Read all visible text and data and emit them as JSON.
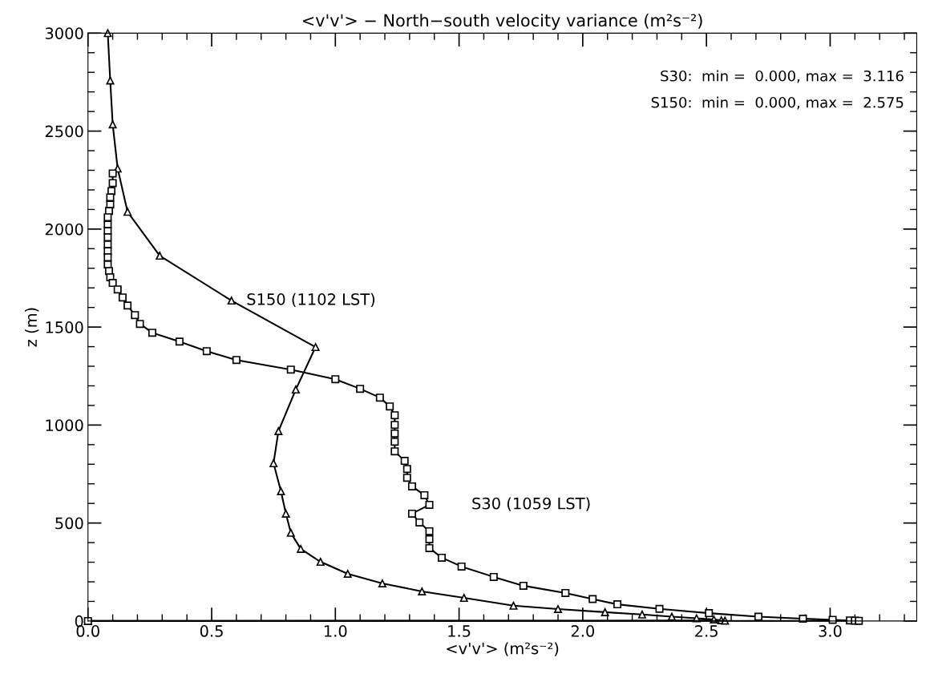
{
  "chart_data": {
    "type": "line",
    "title": "<v'v'> − North−south velocity variance (m²s⁻²)",
    "xlabel": "<v'v'> (m²s⁻²)",
    "ylabel": "z (m)",
    "annotations": [
      "S30:  min =  0.000, max =  3.116",
      "S150:  min =  0.000, max =  2.575"
    ],
    "xlim": [
      0,
      3.35
    ],
    "ylim": [
      0,
      3000
    ],
    "xticks": [
      {
        "value": 0,
        "label": "0.0"
      },
      {
        "value": 0.5,
        "label": "0.5"
      },
      {
        "value": 1,
        "label": "1.0"
      },
      {
        "value": 1.5,
        "label": "1.5"
      },
      {
        "value": 2,
        "label": "2.0"
      },
      {
        "value": 2.5,
        "label": "2.5"
      },
      {
        "value": 3,
        "label": "3.0"
      }
    ],
    "yticks": [
      0,
      500,
      1000,
      1500,
      2000,
      2500,
      3000
    ],
    "grid": false,
    "legend": false,
    "line_style": "solid",
    "series": [
      {
        "name": "S150 (1102 LST)",
        "color": "#000000",
        "marker": "triangle",
        "x": [
          0.08,
          0.09,
          0.1,
          0.12,
          0.16,
          0.29,
          0.58,
          0.92,
          0.84,
          0.77,
          0.75,
          0.78,
          0.8,
          0.82,
          0.86,
          0.94,
          1.05,
          1.19,
          1.35,
          1.52,
          1.72,
          1.9,
          2.09,
          2.24,
          2.36,
          2.46,
          2.53,
          2.56,
          2.575,
          0
        ],
        "values": [
          3000,
          2758,
          2534,
          2309,
          2088,
          1864,
          1635,
          1398,
          1181,
          969,
          805,
          662,
          548,
          450,
          368,
          302,
          241,
          192,
          151,
          118,
          78,
          61,
          45,
          33,
          22,
          14,
          8,
          4,
          2,
          0
        ]
      },
      {
        "name": "S30 (1059 LST)",
        "color": "#000000",
        "marker": "square",
        "x": [
          0.1,
          0.1,
          0.095,
          0.09,
          0.09,
          0.085,
          0.08,
          0.08,
          0.08,
          0.08,
          0.08,
          0.08,
          0.08,
          0.08,
          0.085,
          0.09,
          0.1,
          0.12,
          0.14,
          0.16,
          0.19,
          0.21,
          0.26,
          0.37,
          0.48,
          0.6,
          0.82,
          1.0,
          1.1,
          1.18,
          1.22,
          1.24,
          1.24,
          1.24,
          1.24,
          1.24,
          1.28,
          1.29,
          1.29,
          1.31,
          1.36,
          1.38,
          1.31,
          1.34,
          1.38,
          1.38,
          1.38,
          1.43,
          1.51,
          1.64,
          1.76,
          1.93,
          2.04,
          2.14,
          2.31,
          2.51,
          2.71,
          2.89,
          3.01,
          3.08,
          3.1,
          3.116,
          0
        ],
        "values": [
          2284,
          2235,
          2194,
          2162,
          2125,
          2092,
          2060,
          2023,
          1990,
          1958,
          1921,
          1888,
          1856,
          1819,
          1786,
          1754,
          1725,
          1692,
          1651,
          1610,
          1561,
          1516,
          1471,
          1426,
          1377,
          1332,
          1283,
          1234,
          1185,
          1140,
          1095,
          1050,
          1001,
          957,
          915,
          866,
          817,
          776,
          731,
          687,
          642,
          593,
          548,
          503,
          458,
          417,
          372,
          323,
          278,
          225,
          180,
          143,
          112,
          85,
          62,
          40,
          22,
          12,
          6,
          3,
          2,
          1,
          0
        ]
      }
    ]
  }
}
